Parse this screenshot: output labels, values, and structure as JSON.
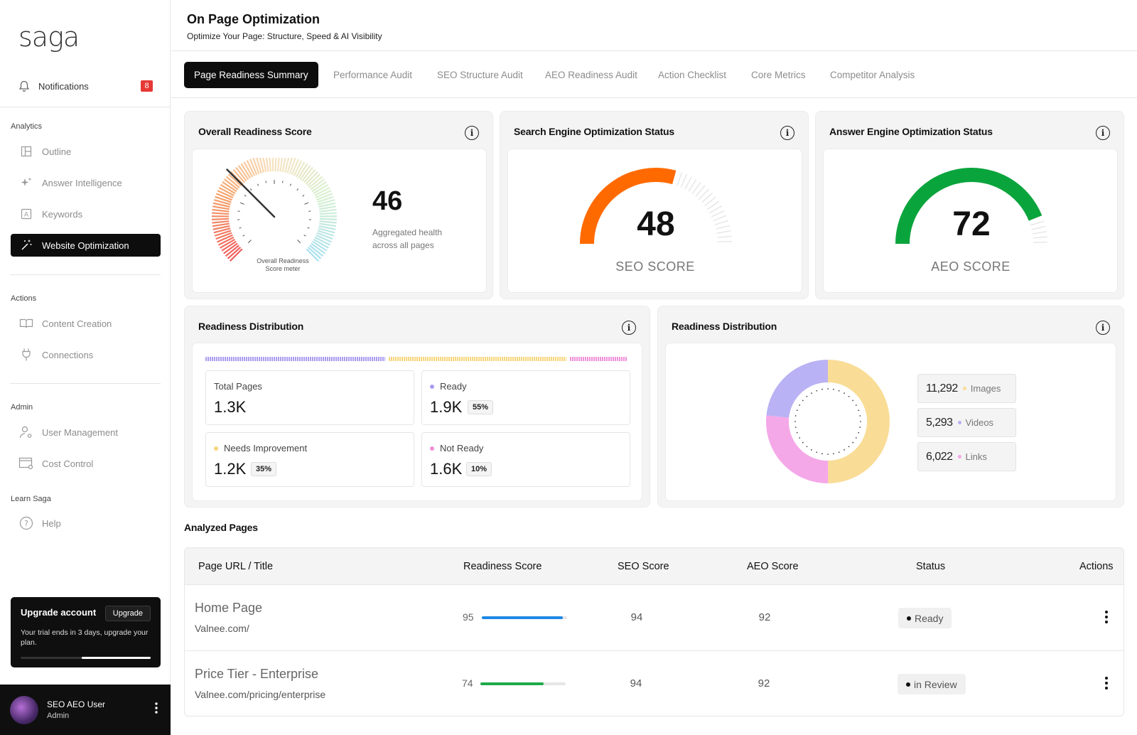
{
  "sidebar": {
    "logo": "saga",
    "notifications": {
      "label": "Notifications",
      "count": "8"
    },
    "sections": {
      "analytics": "Analytics",
      "actions": "Actions",
      "admin": "Admin",
      "learn": "Learn Saga"
    },
    "items": {
      "outline": "Outline",
      "answer_intelligence": "Answer Intelligence",
      "keywords": "Keywords",
      "website_optimization": "Website Optimization",
      "content_creation": "Content Creation",
      "connections": "Connections",
      "user_management": "User Management",
      "cost_control": "Cost Control",
      "help": "Help"
    },
    "upgrade": {
      "title": "Upgrade account",
      "button": "Upgrade",
      "text": "Your trial ends in 3 days, upgrade your plan.",
      "progress_fraction": 0.53
    },
    "user": {
      "name": "SEO AEO User",
      "role": "Admin"
    }
  },
  "header": {
    "title": "On Page Optimization",
    "subtitle": "Optimize Your Page: Structure, Speed & AI Visibility"
  },
  "tabs": [
    "Page Readiness Summary",
    "Performance Audit",
    "SEO Structure Audit",
    "AEO Readiness Audit",
    "Action Checklist",
    "Core Metrics",
    "Competitor Analysis"
  ],
  "overall": {
    "title": "Overall Readiness Score",
    "value": "46",
    "description": "Aggregated health across all pages",
    "meter_label_1": "Overall Readiness",
    "meter_label_2": "Score meter"
  },
  "seo": {
    "title": "Search Engine Optimization Status",
    "value": "48",
    "label": "SEO SCORE",
    "color": "#ff6a00"
  },
  "aeo": {
    "title": "Answer Engine Optimization Status",
    "value": "72",
    "label": "AEO SCORE",
    "color": "#0aa43c"
  },
  "distribution": {
    "title": "Readiness Distribution",
    "total": {
      "label": "Total Pages",
      "value": "1.3K"
    },
    "ready": {
      "label": "Ready",
      "value": "1.9K",
      "pct": "55%",
      "color": "#a99cf0"
    },
    "needs": {
      "label": "Needs Improvement",
      "value": "1.2K",
      "pct": "35%",
      "color": "#f7d57a"
    },
    "not_ready": {
      "label": "Not Ready",
      "value": "1.6K",
      "pct": "10%",
      "color": "#ef8fd8"
    }
  },
  "distribution2": {
    "title": "Readiness Distribution",
    "legend": [
      {
        "value": "11,292",
        "name": "Images",
        "color": "#f9dc96"
      },
      {
        "value": "5,293",
        "name": "Videos",
        "color": "#b9b2f4"
      },
      {
        "value": "6,022",
        "name": "Links",
        "color": "#f4a8e8"
      }
    ]
  },
  "table": {
    "title": "Analyzed Pages",
    "headers": [
      "Page URL / Title",
      "Readiness Score",
      "SEO Score",
      "AEO Score",
      "Status",
      "Actions"
    ],
    "rows": [
      {
        "title": "Home Page",
        "url": "Valnee.com/",
        "readiness": "95",
        "seo": "94",
        "aeo": "92",
        "status": "Ready",
        "bar_color": "#1e88e5"
      },
      {
        "title": "Price Tier - Enterprise",
        "url": "Valnee.com/pricing/enterprise",
        "readiness": "74",
        "seo": "94",
        "aeo": "92",
        "status": "in Review",
        "bar_color": "#1faa4a"
      }
    ]
  }
}
